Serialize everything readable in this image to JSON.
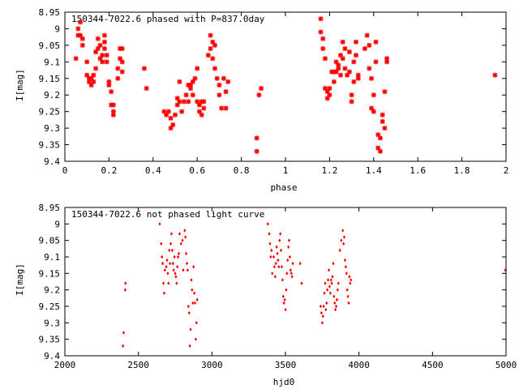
{
  "chart_data": [
    {
      "type": "scatter",
      "title": "150344-7022.6 phased with P=837.0day",
      "xlabel": "phase",
      "ylabel": "I[mag]",
      "xlim": [
        0,
        2
      ],
      "ylim": [
        9.4,
        8.95
      ],
      "y_inverted": true,
      "x_ticks": [
        "0",
        "0.2",
        "0.4",
        "0.6",
        "0.8",
        "1",
        "1.2",
        "1.4",
        "1.6",
        "1.8",
        "2"
      ],
      "y_ticks": [
        "8.95",
        "9",
        "9.05",
        "9.1",
        "9.15",
        "9.2",
        "9.25",
        "9.3",
        "9.35",
        "9.4"
      ],
      "grid": false,
      "legend": "none",
      "marker_color": "#ff0000",
      "points": [
        [
          0.05,
          9.09
        ],
        [
          0.06,
          9.02
        ],
        [
          0.06,
          9.0
        ],
        [
          0.07,
          8.98
        ],
        [
          0.07,
          9.02
        ],
        [
          0.08,
          9.03
        ],
        [
          0.08,
          9.05
        ],
        [
          0.1,
          9.1
        ],
        [
          0.1,
          9.14
        ],
        [
          0.11,
          9.15
        ],
        [
          0.11,
          9.16
        ],
        [
          0.12,
          9.17
        ],
        [
          0.12,
          9.15
        ],
        [
          0.13,
          9.14
        ],
        [
          0.13,
          9.16
        ],
        [
          0.14,
          9.12
        ],
        [
          0.14,
          9.07
        ],
        [
          0.15,
          9.03
        ],
        [
          0.15,
          9.06
        ],
        [
          0.16,
          9.09
        ],
        [
          0.16,
          9.05
        ],
        [
          0.17,
          9.08
        ],
        [
          0.17,
          9.1
        ],
        [
          0.18,
          9.04
        ],
        [
          0.18,
          9.06
        ],
        [
          0.18,
          9.02
        ],
        [
          0.19,
          9.08
        ],
        [
          0.19,
          9.1
        ],
        [
          0.2,
          9.16
        ],
        [
          0.2,
          9.17
        ],
        [
          0.21,
          9.19
        ],
        [
          0.21,
          9.23
        ],
        [
          0.22,
          9.25
        ],
        [
          0.22,
          9.26
        ],
        [
          0.22,
          9.23
        ],
        [
          0.24,
          9.15
        ],
        [
          0.24,
          9.12
        ],
        [
          0.25,
          9.09
        ],
        [
          0.25,
          9.06
        ],
        [
          0.26,
          9.1
        ],
        [
          0.26,
          9.13
        ],
        [
          0.26,
          9.06
        ],
        [
          0.36,
          9.12
        ],
        [
          0.37,
          9.18
        ],
        [
          0.45,
          9.25
        ],
        [
          0.46,
          9.26
        ],
        [
          0.47,
          9.25
        ],
        [
          0.48,
          9.27
        ],
        [
          0.48,
          9.3
        ],
        [
          0.49,
          9.29
        ],
        [
          0.5,
          9.26
        ],
        [
          0.51,
          9.21
        ],
        [
          0.51,
          9.23
        ],
        [
          0.52,
          9.22
        ],
        [
          0.52,
          9.16
        ],
        [
          0.53,
          9.25
        ],
        [
          0.54,
          9.22
        ],
        [
          0.55,
          9.2
        ],
        [
          0.56,
          9.17
        ],
        [
          0.56,
          9.22
        ],
        [
          0.57,
          9.18
        ],
        [
          0.57,
          9.17
        ],
        [
          0.58,
          9.16
        ],
        [
          0.58,
          9.2
        ],
        [
          0.59,
          9.15
        ],
        [
          0.6,
          9.22
        ],
        [
          0.6,
          9.12
        ],
        [
          0.61,
          9.23
        ],
        [
          0.61,
          9.25
        ],
        [
          0.62,
          9.22
        ],
        [
          0.62,
          9.26
        ],
        [
          0.63,
          9.24
        ],
        [
          0.63,
          9.22
        ],
        [
          0.65,
          9.08
        ],
        [
          0.66,
          9.06
        ],
        [
          0.66,
          9.02
        ],
        [
          0.67,
          9.04
        ],
        [
          0.67,
          9.09
        ],
        [
          0.68,
          9.12
        ],
        [
          0.68,
          9.05
        ],
        [
          0.69,
          9.15
        ],
        [
          0.7,
          9.17
        ],
        [
          0.7,
          9.2
        ],
        [
          0.71,
          9.24
        ],
        [
          0.72,
          9.15
        ],
        [
          0.73,
          9.19
        ],
        [
          0.73,
          9.24
        ],
        [
          0.74,
          9.16
        ],
        [
          0.87,
          9.33
        ],
        [
          0.87,
          9.37
        ],
        [
          0.88,
          9.2
        ],
        [
          0.89,
          9.18
        ],
        [
          1.16,
          8.97
        ],
        [
          1.16,
          9.01
        ],
        [
          1.17,
          9.03
        ],
        [
          1.17,
          9.06
        ],
        [
          1.18,
          9.09
        ],
        [
          1.18,
          9.18
        ],
        [
          1.19,
          9.19
        ],
        [
          1.19,
          9.21
        ],
        [
          1.2,
          9.18
        ],
        [
          1.2,
          9.2
        ],
        [
          1.21,
          9.13
        ],
        [
          1.22,
          9.13
        ],
        [
          1.22,
          9.16
        ],
        [
          1.23,
          9.1
        ],
        [
          1.23,
          9.13
        ],
        [
          1.24,
          9.11
        ],
        [
          1.24,
          9.12
        ],
        [
          1.25,
          9.14
        ],
        [
          1.25,
          9.08
        ],
        [
          1.26,
          9.04
        ],
        [
          1.26,
          9.09
        ],
        [
          1.27,
          9.06
        ],
        [
          1.27,
          9.12
        ],
        [
          1.28,
          9.14
        ],
        [
          1.29,
          9.07
        ],
        [
          1.29,
          9.13
        ],
        [
          1.3,
          9.2
        ],
        [
          1.3,
          9.22
        ],
        [
          1.31,
          9.16
        ],
        [
          1.31,
          9.1
        ],
        [
          1.32,
          9.04
        ],
        [
          1.32,
          9.08
        ],
        [
          1.33,
          9.14
        ],
        [
          1.33,
          9.15
        ],
        [
          1.36,
          9.06
        ],
        [
          1.37,
          9.02
        ],
        [
          1.38,
          9.05
        ],
        [
          1.38,
          9.12
        ],
        [
          1.39,
          9.15
        ],
        [
          1.39,
          9.24
        ],
        [
          1.4,
          9.25
        ],
        [
          1.4,
          9.2
        ],
        [
          1.41,
          9.1
        ],
        [
          1.41,
          9.04
        ],
        [
          1.42,
          9.32
        ],
        [
          1.42,
          9.36
        ],
        [
          1.43,
          9.37
        ],
        [
          1.43,
          9.33
        ],
        [
          1.44,
          9.28
        ],
        [
          1.44,
          9.26
        ],
        [
          1.45,
          9.3
        ],
        [
          1.45,
          9.19
        ],
        [
          1.46,
          9.1
        ],
        [
          1.46,
          9.09
        ],
        [
          1.95,
          9.14
        ]
      ]
    },
    {
      "type": "scatter",
      "title": "150344-7022.6 not phased light curve",
      "xlabel": "hjd0",
      "ylabel": "I[mag]",
      "xlim": [
        2000,
        5000
      ],
      "ylim": [
        9.4,
        8.95
      ],
      "y_inverted": true,
      "x_ticks": [
        "2000",
        "2500",
        "3000",
        "3500",
        "4000",
        "4500",
        "5000"
      ],
      "y_ticks": [
        "8.95",
        "9",
        "9.05",
        "9.1",
        "9.15",
        "9.2",
        "9.25",
        "9.3",
        "9.35",
        "9.4"
      ],
      "grid": false,
      "legend": "none",
      "marker_color": "#ff0000",
      "points": [
        [
          2395,
          9.37
        ],
        [
          2400,
          9.33
        ],
        [
          2410,
          9.2
        ],
        [
          2412,
          9.18
        ],
        [
          2645,
          9.0
        ],
        [
          2655,
          9.06
        ],
        [
          2660,
          9.1
        ],
        [
          2665,
          9.12
        ],
        [
          2670,
          9.18
        ],
        [
          2675,
          9.21
        ],
        [
          2680,
          9.14
        ],
        [
          2690,
          9.13
        ],
        [
          2695,
          9.11
        ],
        [
          2700,
          9.15
        ],
        [
          2705,
          9.18
        ],
        [
          2710,
          9.08
        ],
        [
          2715,
          9.12
        ],
        [
          2720,
          9.06
        ],
        [
          2725,
          9.03
        ],
        [
          2730,
          9.08
        ],
        [
          2735,
          9.12
        ],
        [
          2740,
          9.14
        ],
        [
          2745,
          9.1
        ],
        [
          2750,
          9.15
        ],
        [
          2755,
          9.16
        ],
        [
          2760,
          9.18
        ],
        [
          2765,
          9.13
        ],
        [
          2770,
          9.1
        ],
        [
          2775,
          9.09
        ],
        [
          2780,
          9.03
        ],
        [
          2790,
          9.06
        ],
        [
          2800,
          9.05
        ],
        [
          2805,
          9.14
        ],
        [
          2815,
          9.02
        ],
        [
          2820,
          9.04
        ],
        [
          2825,
          9.09
        ],
        [
          2830,
          9.12
        ],
        [
          2835,
          9.14
        ],
        [
          2840,
          9.25
        ],
        [
          2845,
          9.27
        ],
        [
          2850,
          9.37
        ],
        [
          2855,
          9.32
        ],
        [
          2860,
          9.17
        ],
        [
          2865,
          9.2
        ],
        [
          2870,
          9.24
        ],
        [
          2875,
          9.13
        ],
        [
          2880,
          9.21
        ],
        [
          2885,
          9.24
        ],
        [
          2890,
          9.35
        ],
        [
          2895,
          9.3
        ],
        [
          2900,
          9.23
        ],
        [
          3380,
          9.0
        ],
        [
          3390,
          9.03
        ],
        [
          3395,
          9.06
        ],
        [
          3400,
          9.1
        ],
        [
          3405,
          9.08
        ],
        [
          3410,
          9.15
        ],
        [
          3420,
          9.1
        ],
        [
          3425,
          9.13
        ],
        [
          3430,
          9.16
        ],
        [
          3435,
          9.12
        ],
        [
          3440,
          9.07
        ],
        [
          3445,
          9.09
        ],
        [
          3450,
          9.11
        ],
        [
          3455,
          9.13
        ],
        [
          3460,
          9.05
        ],
        [
          3465,
          9.03
        ],
        [
          3470,
          9.08
        ],
        [
          3475,
          9.13
        ],
        [
          3480,
          9.17
        ],
        [
          3485,
          9.22
        ],
        [
          3490,
          9.24
        ],
        [
          3495,
          9.23
        ],
        [
          3500,
          9.26
        ],
        [
          3505,
          9.2
        ],
        [
          3510,
          9.15
        ],
        [
          3515,
          9.11
        ],
        [
          3520,
          9.07
        ],
        [
          3525,
          9.05
        ],
        [
          3530,
          9.1
        ],
        [
          3535,
          9.14
        ],
        [
          3540,
          9.15
        ],
        [
          3545,
          9.16
        ],
        [
          3550,
          9.12
        ],
        [
          3600,
          9.12
        ],
        [
          3610,
          9.18
        ],
        [
          3740,
          9.25
        ],
        [
          3745,
          9.27
        ],
        [
          3750,
          9.3
        ],
        [
          3755,
          9.28
        ],
        [
          3760,
          9.25
        ],
        [
          3765,
          9.21
        ],
        [
          3770,
          9.18
        ],
        [
          3775,
          9.26
        ],
        [
          3780,
          9.24
        ],
        [
          3785,
          9.2
        ],
        [
          3790,
          9.17
        ],
        [
          3795,
          9.14
        ],
        [
          3800,
          9.19
        ],
        [
          3805,
          9.21
        ],
        [
          3810,
          9.17
        ],
        [
          3815,
          9.18
        ],
        [
          3820,
          9.16
        ],
        [
          3825,
          9.12
        ],
        [
          3830,
          9.22
        ],
        [
          3835,
          9.24
        ],
        [
          3840,
          9.26
        ],
        [
          3845,
          9.25
        ],
        [
          3850,
          9.23
        ],
        [
          3855,
          9.2
        ],
        [
          3860,
          9.18
        ],
        [
          3870,
          9.08
        ],
        [
          3880,
          9.05
        ],
        [
          3890,
          9.02
        ],
        [
          3895,
          9.06
        ],
        [
          3900,
          9.04
        ],
        [
          3905,
          9.11
        ],
        [
          3910,
          9.13
        ],
        [
          3915,
          9.15
        ],
        [
          3920,
          9.2
        ],
        [
          3925,
          9.22
        ],
        [
          3930,
          9.24
        ],
        [
          3935,
          9.16
        ],
        [
          3940,
          9.18
        ],
        [
          3945,
          9.17
        ],
        [
          4995,
          9.14
        ]
      ]
    }
  ]
}
